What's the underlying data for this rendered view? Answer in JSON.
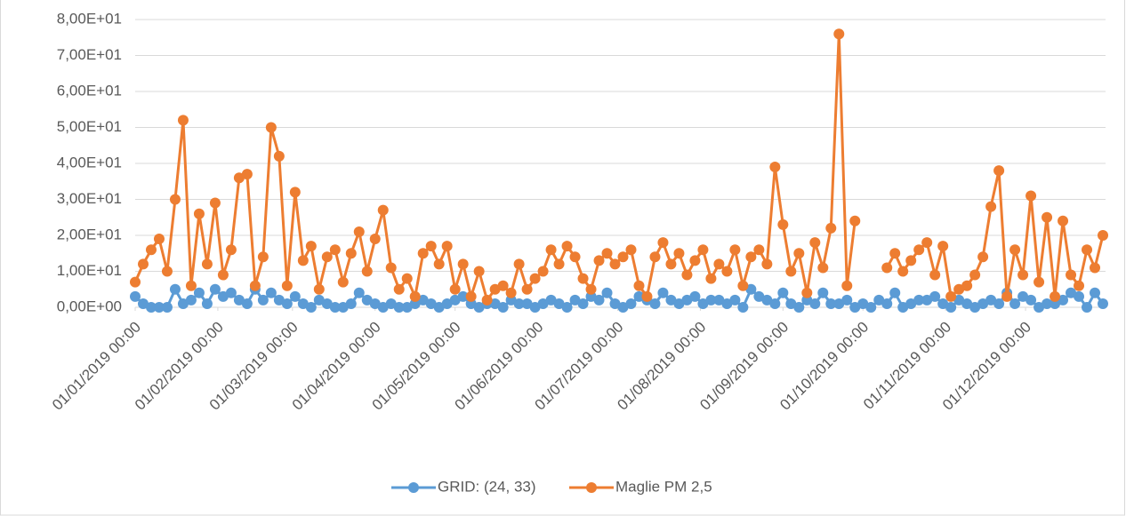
{
  "chart_data": {
    "type": "line",
    "x": [
      "2019-01-01",
      "2019-01-04",
      "2019-01-07",
      "2019-01-10",
      "2019-01-13",
      "2019-01-16",
      "2019-01-19",
      "2019-01-22",
      "2019-01-25",
      "2019-01-28",
      "2019-01-31",
      "2019-02-03",
      "2019-02-06",
      "2019-02-09",
      "2019-02-12",
      "2019-02-15",
      "2019-02-18",
      "2019-02-21",
      "2019-02-24",
      "2019-02-27",
      "2019-03-02",
      "2019-03-05",
      "2019-03-08",
      "2019-03-11",
      "2019-03-14",
      "2019-03-17",
      "2019-03-20",
      "2019-03-23",
      "2019-03-26",
      "2019-03-29",
      "2019-04-01",
      "2019-04-04",
      "2019-04-07",
      "2019-04-10",
      "2019-04-13",
      "2019-04-16",
      "2019-04-19",
      "2019-04-22",
      "2019-04-25",
      "2019-04-28",
      "2019-05-01",
      "2019-05-04",
      "2019-05-07",
      "2019-05-10",
      "2019-05-13",
      "2019-05-16",
      "2019-05-19",
      "2019-05-22",
      "2019-05-25",
      "2019-05-28",
      "2019-05-31",
      "2019-06-03",
      "2019-06-06",
      "2019-06-09",
      "2019-06-12",
      "2019-06-15",
      "2019-06-18",
      "2019-06-21",
      "2019-06-24",
      "2019-06-27",
      "2019-06-30",
      "2019-07-03",
      "2019-07-06",
      "2019-07-09",
      "2019-07-12",
      "2019-07-15",
      "2019-07-18",
      "2019-07-21",
      "2019-07-24",
      "2019-07-27",
      "2019-07-30",
      "2019-08-02",
      "2019-08-05",
      "2019-08-08",
      "2019-08-11",
      "2019-08-14",
      "2019-08-17",
      "2019-08-20",
      "2019-08-23",
      "2019-08-26",
      "2019-08-29",
      "2019-09-01",
      "2019-09-04",
      "2019-09-07",
      "2019-09-10",
      "2019-09-13",
      "2019-09-16",
      "2019-09-19",
      "2019-09-22",
      "2019-09-25",
      "2019-09-28",
      "2019-10-01",
      "2019-10-04",
      "2019-10-07",
      "2019-10-10",
      "2019-10-13",
      "2019-10-16",
      "2019-10-19",
      "2019-10-22",
      "2019-10-25",
      "2019-10-28",
      "2019-10-31",
      "2019-11-03",
      "2019-11-06",
      "2019-11-09",
      "2019-11-12",
      "2019-11-15",
      "2019-11-18",
      "2019-11-21",
      "2019-11-24",
      "2019-11-27",
      "2019-11-30",
      "2019-12-03",
      "2019-12-06",
      "2019-12-09",
      "2019-12-12",
      "2019-12-15",
      "2019-12-18",
      "2019-12-21",
      "2019-12-24",
      "2019-12-27",
      "2019-12-30"
    ],
    "series": [
      {
        "name": "GRID: (24, 33)",
        "color": "#5b9bd5",
        "values": [
          3,
          1,
          0,
          0,
          0,
          5,
          1,
          2,
          4,
          1,
          5,
          3,
          4,
          2,
          1,
          5,
          2,
          4,
          2,
          1,
          3,
          1,
          0,
          2,
          1,
          0,
          0,
          1,
          4,
          2,
          1,
          0,
          1,
          0,
          0,
          1,
          2,
          1,
          0,
          1,
          2,
          3,
          1,
          0,
          1,
          1,
          0,
          2,
          1,
          1,
          0,
          1,
          2,
          1,
          0,
          2,
          1,
          3,
          2,
          4,
          1,
          0,
          1,
          3,
          2,
          1,
          4,
          2,
          1,
          2,
          3,
          1,
          2,
          2,
          1,
          2,
          0,
          5,
          3,
          2,
          1,
          4,
          1,
          0,
          2,
          1,
          4,
          1,
          1,
          2,
          0,
          1,
          0,
          2,
          1,
          4,
          0,
          1,
          2,
          2,
          3,
          1,
          0,
          2,
          1,
          0,
          1,
          2,
          1,
          4,
          1,
          3,
          2,
          0,
          1,
          1,
          2,
          4,
          3,
          0,
          4,
          1
        ]
      },
      {
        "name": "Maglie PM 2,5",
        "color": "#ed7d31",
        "values": [
          7,
          12,
          16,
          19,
          10,
          30,
          52,
          6,
          26,
          12,
          29,
          9,
          16,
          36,
          37,
          6,
          14,
          50,
          42,
          6,
          32,
          13,
          17,
          5,
          14,
          16,
          7,
          15,
          21,
          10,
          19,
          27,
          11,
          5,
          8,
          3,
          15,
          17,
          12,
          17,
          5,
          12,
          3,
          10,
          2,
          5,
          6,
          4,
          12,
          5,
          8,
          10,
          16,
          12,
          17,
          14,
          8,
          5,
          13,
          15,
          12,
          14,
          16,
          6,
          3,
          14,
          18,
          12,
          15,
          9,
          13,
          16,
          8,
          12,
          10,
          16,
          6,
          14,
          16,
          12,
          39,
          23,
          10,
          15,
          4,
          18,
          11,
          22,
          76,
          6,
          24,
          null,
          null,
          null,
          11,
          15,
          10,
          13,
          16,
          18,
          9,
          17,
          3,
          5,
          6,
          9,
          14,
          28,
          38,
          3,
          16,
          9,
          31,
          7,
          25,
          3,
          24,
          9,
          6,
          16,
          11,
          20
        ]
      }
    ],
    "xlim": [
      "2019-01-01",
      "2019-12-31"
    ],
    "xticks": [
      {
        "value": "2019-01-01",
        "label": "01/01/2019 00:00"
      },
      {
        "value": "2019-02-01",
        "label": "01/02/2019 00:00"
      },
      {
        "value": "2019-03-01",
        "label": "01/03/2019 00:00"
      },
      {
        "value": "2019-04-01",
        "label": "01/04/2019 00:00"
      },
      {
        "value": "2019-05-01",
        "label": "01/05/2019 00:00"
      },
      {
        "value": "2019-06-01",
        "label": "01/06/2019 00:00"
      },
      {
        "value": "2019-07-01",
        "label": "01/07/2019 00:00"
      },
      {
        "value": "2019-08-01",
        "label": "01/08/2019 00:00"
      },
      {
        "value": "2019-09-01",
        "label": "01/09/2019 00:00"
      },
      {
        "value": "2019-10-01",
        "label": "01/10/2019 00:00"
      },
      {
        "value": "2019-11-01",
        "label": "01/11/2019 00:00"
      },
      {
        "value": "2019-12-01",
        "label": "01/12/2019 00:00"
      }
    ],
    "ylim": [
      0,
      80
    ],
    "yticks": [
      {
        "value": 0,
        "label": "0,00E+00"
      },
      {
        "value": 10,
        "label": "1,00E+01"
      },
      {
        "value": 20,
        "label": "2,00E+01"
      },
      {
        "value": 30,
        "label": "3,00E+01"
      },
      {
        "value": 40,
        "label": "4,00E+01"
      },
      {
        "value": 50,
        "label": "5,00E+01"
      },
      {
        "value": 60,
        "label": "6,00E+01"
      },
      {
        "value": 70,
        "label": "7,00E+01"
      },
      {
        "value": 80,
        "label": "8,00E+01"
      }
    ],
    "grid": true,
    "legend": "bottom"
  }
}
